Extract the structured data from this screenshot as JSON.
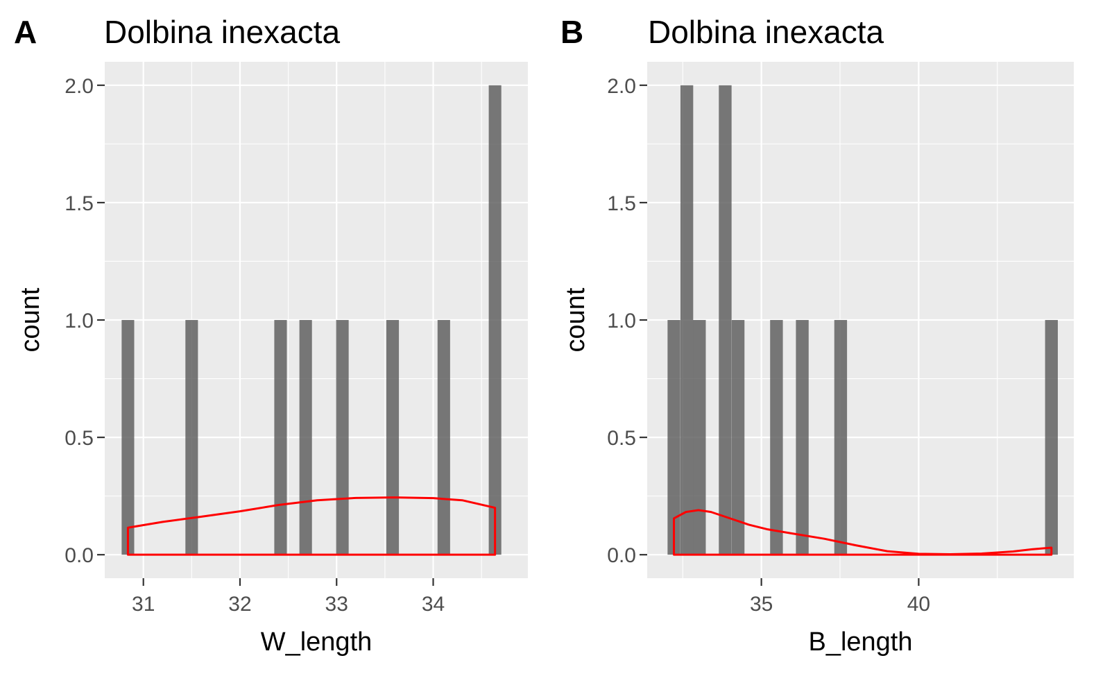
{
  "chart_data": [
    {
      "type": "bar",
      "panel_label": "A",
      "title": "Dolbina inexacta",
      "xlabel": "W_length",
      "ylabel": "count",
      "xlim": [
        30.6,
        34.98
      ],
      "ylim": [
        -0.1,
        2.1
      ],
      "x_ticks": [
        31,
        32,
        33,
        34
      ],
      "x_tick_labels": [
        "31",
        "32",
        "33",
        "34"
      ],
      "y_ticks": [
        0.0,
        0.5,
        1.0,
        1.5,
        2.0
      ],
      "y_tick_labels": [
        "0.0",
        "0.5",
        "1.0",
        "1.5",
        "2.0"
      ],
      "bin_width": 0.13,
      "bars": [
        {
          "x": 30.84,
          "count": 1
        },
        {
          "x": 31.5,
          "count": 1
        },
        {
          "x": 32.42,
          "count": 1
        },
        {
          "x": 32.68,
          "count": 1
        },
        {
          "x": 33.06,
          "count": 1
        },
        {
          "x": 33.58,
          "count": 1
        },
        {
          "x": 34.11,
          "count": 1
        },
        {
          "x": 34.64,
          "count": 2
        }
      ],
      "density": {
        "x": [
          30.84,
          31.2,
          31.6,
          32.0,
          32.4,
          32.8,
          33.2,
          33.6,
          34.0,
          34.3,
          34.64
        ],
        "y": [
          0.115,
          0.14,
          0.162,
          0.185,
          0.212,
          0.232,
          0.242,
          0.244,
          0.241,
          0.232,
          0.2
        ]
      },
      "grid": true,
      "bar_color": "#595959",
      "density_color": "#ff0000",
      "panel_background": "#ebebeb"
    },
    {
      "type": "bar",
      "panel_label": "B",
      "title": "Dolbina inexacta",
      "xlabel": "B_length",
      "ylabel": "count",
      "xlim": [
        31.37,
        44.93
      ],
      "ylim": [
        -0.1,
        2.1
      ],
      "x_ticks": [
        35,
        40
      ],
      "x_tick_labels": [
        "35",
        "40"
      ],
      "y_ticks": [
        0.0,
        0.5,
        1.0,
        1.5,
        2.0
      ],
      "y_tick_labels": [
        "0.0",
        "0.5",
        "1.0",
        "1.5",
        "2.0"
      ],
      "bin_width": 0.405,
      "bars": [
        {
          "x": 32.22,
          "count": 1
        },
        {
          "x": 32.63,
          "count": 2
        },
        {
          "x": 33.03,
          "count": 1
        },
        {
          "x": 33.85,
          "count": 2
        },
        {
          "x": 34.26,
          "count": 1
        },
        {
          "x": 35.48,
          "count": 1
        },
        {
          "x": 36.3,
          "count": 1
        },
        {
          "x": 37.52,
          "count": 1
        },
        {
          "x": 44.22,
          "count": 1
        }
      ],
      "density": {
        "x": [
          32.22,
          32.6,
          33.0,
          33.4,
          34.0,
          34.6,
          35.2,
          36.0,
          37.0,
          38.0,
          39.0,
          40.0,
          41.0,
          42.0,
          43.0,
          43.6,
          44.22
        ],
        "y": [
          0.155,
          0.182,
          0.19,
          0.182,
          0.155,
          0.128,
          0.108,
          0.09,
          0.068,
          0.04,
          0.015,
          0.004,
          0.002,
          0.005,
          0.014,
          0.023,
          0.03
        ]
      },
      "grid": true,
      "bar_color": "#595959",
      "density_color": "#ff0000",
      "panel_background": "#ebebeb"
    }
  ]
}
